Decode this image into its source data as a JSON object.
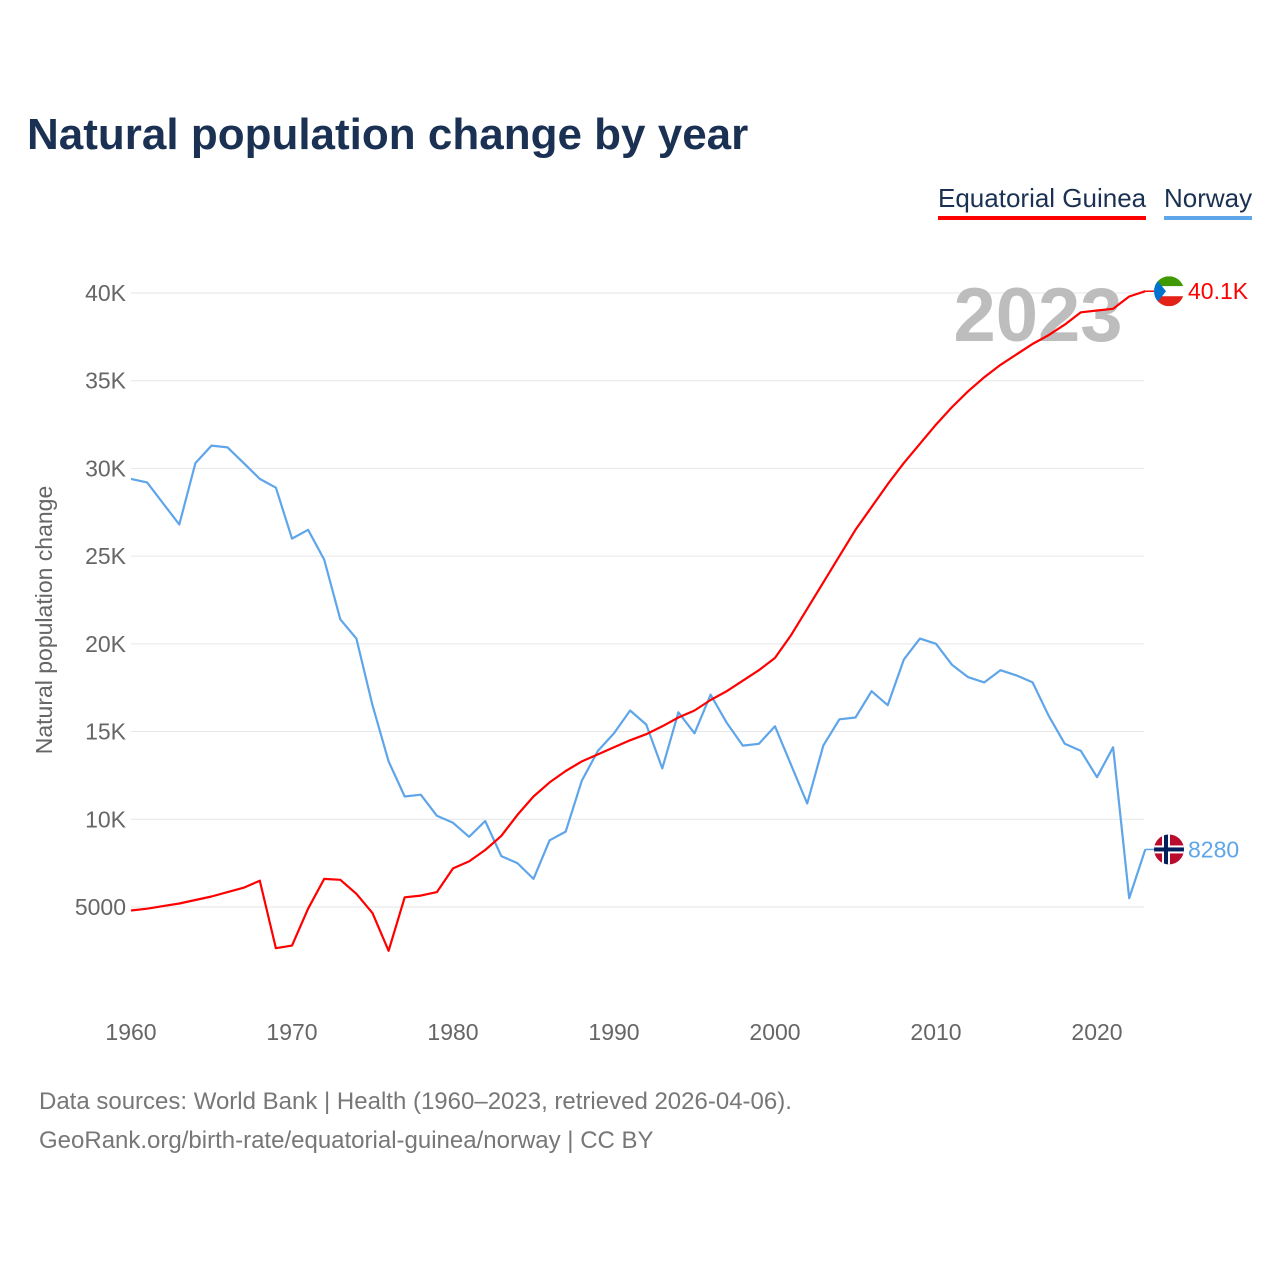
{
  "chart_data": {
    "type": "line",
    "title": "Natural population change by year",
    "xlabel": "",
    "ylabel": "Natural population change",
    "xlim": [
      1960,
      2023
    ],
    "ylim": [
      0,
      42000
    ],
    "x_ticks": [
      1960,
      1970,
      1980,
      1990,
      2000,
      2010,
      2020
    ],
    "x_tick_labels": [
      "1960",
      "1970",
      "1980",
      "1990",
      "2000",
      "2010",
      "2020"
    ],
    "y_ticks": [
      5000,
      10000,
      15000,
      20000,
      25000,
      30000,
      35000,
      40000
    ],
    "y_tick_labels": [
      "5000",
      "10K",
      "15K",
      "20K",
      "25K",
      "30K",
      "35K",
      "40K"
    ],
    "grid": true,
    "legend_position": "top-right",
    "year_watermark": "2023",
    "x": [
      1960,
      1961,
      1962,
      1963,
      1964,
      1965,
      1966,
      1967,
      1968,
      1969,
      1970,
      1971,
      1972,
      1973,
      1974,
      1975,
      1976,
      1977,
      1978,
      1979,
      1980,
      1981,
      1982,
      1983,
      1984,
      1985,
      1986,
      1987,
      1988,
      1989,
      1990,
      1991,
      1992,
      1993,
      1994,
      1995,
      1996,
      1997,
      1998,
      1999,
      2000,
      2001,
      2002,
      2003,
      2004,
      2005,
      2006,
      2007,
      2008,
      2009,
      2010,
      2011,
      2012,
      2013,
      2014,
      2015,
      2016,
      2017,
      2018,
      2019,
      2020,
      2021,
      2022,
      2023
    ],
    "series": [
      {
        "name": "Equatorial Guinea",
        "color": "#ff0000",
        "end_label": "40.1K",
        "values": [
          4800,
          4900,
          5050,
          5200,
          5400,
          5600,
          5850,
          6100,
          6500,
          2650,
          2800,
          4900,
          6600,
          6550,
          5750,
          4650,
          2500,
          5550,
          5650,
          5850,
          7200,
          7600,
          8250,
          9050,
          10250,
          11300,
          12100,
          12750,
          13300,
          13700,
          14100,
          14500,
          14850,
          15300,
          15800,
          16200,
          16800,
          17300,
          17900,
          18500,
          19200,
          20500,
          22000,
          23500,
          25000,
          26500,
          27800,
          29100,
          30300,
          31400,
          32500,
          33500,
          34400,
          35200,
          35900,
          36500,
          37100,
          37600,
          38200,
          38900,
          39000,
          39100,
          39800,
          40100
        ]
      },
      {
        "name": "Norway",
        "color": "#5ea5ea",
        "end_label": "8280",
        "values": [
          29400,
          29200,
          28000,
          26800,
          30300,
          31300,
          31200,
          30300,
          29400,
          28900,
          26000,
          26500,
          24800,
          21400,
          20300,
          16500,
          13300,
          11300,
          11400,
          10200,
          9800,
          9000,
          9900,
          7900,
          7500,
          6600,
          8800,
          9300,
          12200,
          13900,
          14900,
          16200,
          15400,
          12900,
          16100,
          14900,
          17100,
          15500,
          14200,
          14300,
          15300,
          13100,
          10900,
          14200,
          15700,
          15800,
          17300,
          16500,
          19100,
          20300,
          20000,
          18800,
          18100,
          17800,
          18500,
          18200,
          17800,
          15900,
          14300,
          13900,
          12400,
          14100,
          5500,
          8280
        ]
      }
    ]
  },
  "footer": {
    "line1": "Data sources: World Bank | Health (1960–2023, retrieved 2026-04-06).",
    "line2": "GeoRank.org/birth-rate/equatorial-guinea/norway | CC BY"
  }
}
